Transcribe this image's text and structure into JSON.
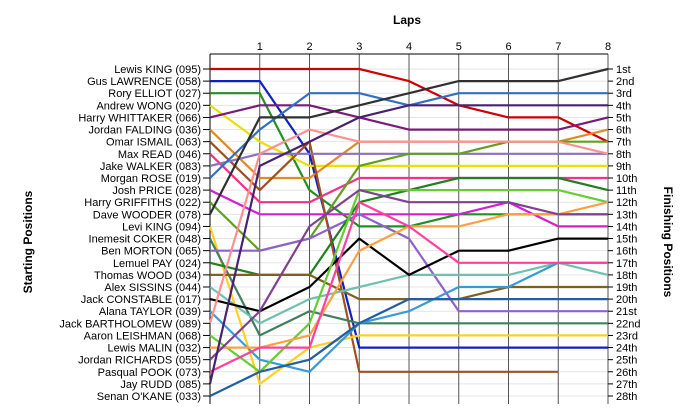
{
  "chart_data": {
    "type": "line",
    "title": "Laps",
    "ylabel_left": "Starting Positions",
    "ylabel_right": "Finishing Positions",
    "x": [
      0,
      1,
      2,
      3,
      4,
      5,
      6,
      7,
      8
    ],
    "x_tick_labels": [
      "1",
      "2",
      "3",
      "4",
      "5",
      "6",
      "7",
      "8"
    ],
    "y_range": [
      1,
      28
    ],
    "grid": true,
    "start_labels": [
      "Lewis KING (095)",
      "Gus LAWRENCE (058)",
      "Rory ELLIOT (027)",
      "Andrew WONG (020)",
      "Harry WHITTAKER (066)",
      "Jordan FALDING (036)",
      "Omar ISMAIL (063)",
      "Max READ (046)",
      "Jake WALKER (083)",
      "Morgan ROSE (019)",
      "Josh PRICE (028)",
      "Harry GRIFFITHS (022)",
      "Dave WOODER (078)",
      "Levi KING (094)",
      "Inemesit COKER (048)",
      "Ben MORTON (065)",
      "Lemuel PAY (024)",
      "Thomas WOOD (034)",
      "Alex SISSINS (044)",
      "Jack CONSTABLE (017)",
      "Alana TAYLOR (039)",
      "Jack BARTHOLOMEW (089)",
      "Aaron LEISHMAN (068)",
      "Lewis MALIN (032)",
      "Jordan RICHARDS (055)",
      "Pasqual POOK (073)",
      "Jay RUDD (085)",
      "Senan O'KANE (033)"
    ],
    "finish_labels": [
      "1st",
      "2nd",
      "3rd",
      "4th",
      "5th",
      "6th",
      "7th",
      "8th",
      "9th",
      "10th",
      "11th",
      "12th",
      "13th",
      "14th",
      "15th",
      "16th",
      "17th",
      "18th",
      "19th",
      "20th",
      "21st",
      "22nd",
      "23rd",
      "24th",
      "25th",
      "26th",
      "27th",
      "28th"
    ],
    "series": [
      {
        "color": "#cc0000",
        "values": [
          1,
          1,
          1,
          1,
          2,
          4,
          5,
          5,
          7
        ]
      },
      {
        "color": "#1020c0",
        "values": [
          2,
          2,
          8,
          24,
          24,
          24,
          24,
          24,
          24
        ]
      },
      {
        "color": "#209020",
        "values": [
          3,
          3,
          11,
          14,
          14,
          13,
          13,
          13,
          13
        ]
      },
      {
        "color": "#e8e000",
        "values": [
          4,
          7,
          9,
          9,
          9,
          9,
          9,
          9,
          9
        ]
      },
      {
        "color": "#7a1a7a",
        "values": [
          5,
          4,
          4,
          5,
          6,
          6,
          6,
          6,
          5
        ]
      },
      {
        "color": "#e08a20",
        "values": [
          6,
          10,
          10,
          7,
          7,
          7,
          7,
          7,
          6
        ]
      },
      {
        "color": "#a05020",
        "values": [
          7,
          11,
          7,
          26,
          26,
          26,
          26,
          26,
          null
        ]
      },
      {
        "color": "#ee3388",
        "values": [
          8,
          12,
          12,
          10,
          10,
          10,
          10,
          10,
          10
        ]
      },
      {
        "color": "#8a70c0",
        "values": [
          9,
          8,
          8,
          8,
          8,
          8,
          8,
          8,
          8
        ]
      },
      {
        "color": "#3070c0",
        "values": [
          10,
          6,
          3,
          3,
          4,
          3,
          3,
          3,
          3
        ]
      },
      {
        "color": "#d020d0",
        "values": [
          11,
          13,
          13,
          13,
          13,
          13,
          12,
          14,
          14
        ]
      },
      {
        "color": "#60a020",
        "values": [
          12,
          16,
          15,
          9,
          8,
          8,
          7,
          7,
          7
        ]
      },
      {
        "color": "#303030",
        "values": [
          13,
          5,
          5,
          4,
          3,
          2,
          2,
          2,
          1
        ]
      },
      {
        "color": "#ffd020",
        "values": [
          14,
          27,
          24,
          23,
          23,
          23,
          23,
          23,
          23
        ]
      },
      {
        "color": "#408060",
        "values": [
          15,
          23,
          21,
          22,
          22,
          22,
          22,
          22,
          22
        ]
      },
      {
        "color": "#9060d0",
        "values": [
          16,
          16,
          15,
          13,
          15,
          21,
          21,
          21,
          21
        ]
      },
      {
        "color": "#208020",
        "values": [
          17,
          18,
          18,
          12,
          11,
          10,
          10,
          10,
          11
        ]
      },
      {
        "color": "#806020",
        "values": [
          18,
          18,
          18,
          20,
          20,
          20,
          19,
          19,
          19
        ]
      },
      {
        "color": "#70c0b0",
        "values": [
          19,
          22,
          20,
          19,
          18,
          18,
          18,
          17,
          18
        ]
      },
      {
        "color": "#000000",
        "values": [
          20,
          21,
          19,
          15,
          18,
          16,
          16,
          15,
          15
        ]
      },
      {
        "color": "#3a9ad8",
        "values": [
          21,
          25,
          26,
          22,
          21,
          19,
          19,
          17,
          17
        ]
      },
      {
        "color": "#ff9090",
        "values": [
          22,
          8,
          6,
          7,
          7,
          7,
          7,
          7,
          8
        ]
      },
      {
        "color": "#66cc33",
        "values": [
          23,
          26,
          22,
          11,
          11,
          11,
          11,
          11,
          12
        ]
      },
      {
        "color": "#ffa040",
        "values": [
          24,
          24,
          23,
          16,
          14,
          14,
          13,
          13,
          12
        ]
      },
      {
        "color": "#804090",
        "values": [
          25,
          21,
          14,
          11,
          12,
          12,
          12,
          13,
          13
        ]
      },
      {
        "color": "#ff40a0",
        "values": [
          26,
          24,
          24,
          12,
          14,
          17,
          17,
          17,
          17
        ]
      },
      {
        "color": "#4a2070",
        "values": [
          27,
          9,
          7,
          5,
          4,
          4,
          4,
          4,
          4
        ]
      },
      {
        "color": "#2060a0",
        "values": [
          28,
          26,
          25,
          22,
          20,
          20,
          20,
          20,
          20
        ]
      }
    ]
  }
}
